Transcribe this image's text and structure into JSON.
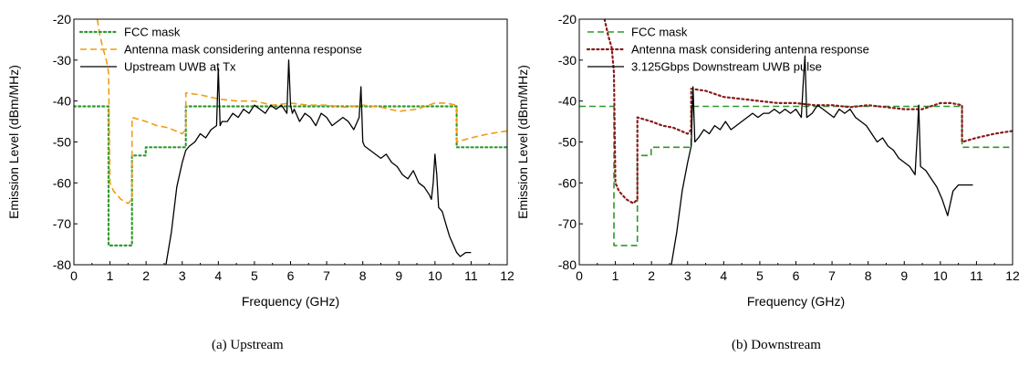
{
  "colors": {
    "fcc_green": "#2e9b2e",
    "fcc_green_dash": "#2a9a2a",
    "antenna_orange": "#f39c12",
    "antenna_maroon": "#8b1a1a",
    "signal": "#000000"
  },
  "chart_data": [
    {
      "type": "line",
      "caption": "(a)  Upstream",
      "xlabel": "Frequency (GHz)",
      "ylabel": "Emission Level (dBm/MHz)",
      "xlim": [
        0,
        12
      ],
      "ylim": [
        -80,
        -20
      ],
      "xticks": [
        "0",
        "1",
        "2",
        "3",
        "4",
        "5",
        "6",
        "7",
        "8",
        "9",
        "10",
        "11",
        "12"
      ],
      "yticks": [
        "-20",
        "-30",
        "-40",
        "-50",
        "-60",
        "-70",
        "-80"
      ],
      "legend_position": "top-left",
      "grid": false,
      "series": [
        {
          "name": "FCC mask",
          "style": "dotted",
          "color": "#2e9b2e",
          "x": [
            0,
            0.96,
            0.96,
            1.61,
            1.61,
            1.99,
            1.99,
            3.1,
            3.1,
            10.6,
            10.6,
            12
          ],
          "y": [
            -41.3,
            -41.3,
            -75.3,
            -75.3,
            -53.3,
            -53.3,
            -51.3,
            -51.3,
            -41.3,
            -41.3,
            -51.3,
            -51.3
          ]
        },
        {
          "name": "Antenna mask considering antenna response",
          "style": "dashed",
          "color": "#f39c12",
          "x": [
            0.65,
            0.72,
            0.8,
            0.9,
            0.96,
            1.0,
            1.1,
            1.3,
            1.5,
            1.61,
            1.61,
            1.8,
            2.0,
            2.3,
            2.6,
            3.0,
            3.1,
            3.1,
            3.5,
            4.0,
            4.5,
            5.0,
            5.5,
            6.0,
            6.5,
            7.0,
            7.5,
            8.0,
            8.5,
            9.0,
            9.5,
            10.0,
            10.3,
            10.6,
            10.6,
            11.0,
            11.5,
            12
          ],
          "y": [
            -20,
            -24,
            -27,
            -30,
            -33,
            -60,
            -62,
            -64,
            -65,
            -64,
            -44,
            -44.5,
            -45,
            -46,
            -46.5,
            -48,
            -47,
            -38,
            -38.5,
            -39.5,
            -40,
            -40,
            -41,
            -40.5,
            -41,
            -41,
            -41.5,
            -41,
            -41.5,
            -42.5,
            -42,
            -40.5,
            -40.5,
            -41,
            -50,
            -49,
            -48,
            -47.3
          ]
        },
        {
          "name": "Upstream UWB at Tx",
          "style": "solid",
          "color": "#000000",
          "x": [
            2.55,
            2.7,
            2.85,
            3.0,
            3.1,
            3.2,
            3.35,
            3.5,
            3.65,
            3.8,
            3.95,
            4.0,
            4.05,
            4.1,
            4.25,
            4.4,
            4.55,
            4.7,
            4.85,
            5.0,
            5.15,
            5.3,
            5.45,
            5.6,
            5.75,
            5.9,
            5.95,
            6.0,
            6.05,
            6.1,
            6.25,
            6.4,
            6.55,
            6.7,
            6.85,
            7.0,
            7.15,
            7.3,
            7.45,
            7.6,
            7.75,
            7.9,
            7.95,
            8.0,
            8.05,
            8.2,
            8.35,
            8.5,
            8.65,
            8.8,
            8.95,
            9.1,
            9.25,
            9.4,
            9.55,
            9.7,
            9.85,
            9.9,
            9.95,
            10.0,
            10.05,
            10.1,
            10.2,
            10.3,
            10.4,
            10.5,
            10.6,
            10.7,
            10.85,
            11.0
          ],
          "y": [
            -80,
            -72,
            -61,
            -55,
            -52,
            -51,
            -50,
            -48,
            -49,
            -47,
            -46,
            -32,
            -46,
            -45,
            -45,
            -43,
            -44,
            -42,
            -43,
            -41,
            -42,
            -43,
            -41,
            -42,
            -41,
            -43,
            -30,
            -41,
            -43,
            -42,
            -45,
            -43,
            -44,
            -46,
            -43,
            -44,
            -46,
            -45,
            -44,
            -45,
            -47,
            -44,
            -36.5,
            -50,
            -51,
            -52,
            -53,
            -54,
            -53,
            -55,
            -56,
            -58,
            -59,
            -57,
            -60,
            -61,
            -63,
            -64,
            -60,
            -53,
            -58,
            -66,
            -67,
            -70,
            -73,
            -75,
            -77,
            -78,
            -77,
            -77
          ]
        }
      ]
    },
    {
      "type": "line",
      "caption": "(b)  Downstream",
      "xlabel": "Frequency (GHz)",
      "ylabel": "Emission Level (dBm/MHz)",
      "xlim": [
        0,
        12
      ],
      "ylim": [
        -80,
        -20
      ],
      "xticks": [
        "0",
        "1",
        "2",
        "3",
        "4",
        "5",
        "6",
        "7",
        "8",
        "9",
        "10",
        "11",
        "12"
      ],
      "yticks": [
        "-20",
        "-30",
        "-40",
        "-50",
        "-60",
        "-70",
        "-80"
      ],
      "legend_position": "top-left",
      "grid": false,
      "series": [
        {
          "name": "FCC mask",
          "style": "dashed",
          "color": "#2a9a2a",
          "x": [
            0,
            0.96,
            0.96,
            1.61,
            1.61,
            1.99,
            1.99,
            3.1,
            3.1,
            10.6,
            10.6,
            12
          ],
          "y": [
            -41.3,
            -41.3,
            -75.3,
            -75.3,
            -53.3,
            -53.3,
            -51.3,
            -51.3,
            -41.3,
            -41.3,
            -51.3,
            -51.3
          ]
        },
        {
          "name": "Antenna mask considering antenna response",
          "style": "dotted",
          "color": "#8b1a1a",
          "x": [
            0.7,
            0.8,
            0.9,
            0.96,
            1.0,
            1.1,
            1.3,
            1.5,
            1.61,
            1.61,
            1.8,
            2.0,
            2.3,
            2.6,
            3.0,
            3.1,
            3.1,
            3.5,
            4.0,
            4.5,
            5.0,
            5.5,
            6.0,
            6.5,
            7.0,
            7.5,
            8.0,
            8.5,
            9.0,
            9.5,
            10.0,
            10.3,
            10.6,
            10.6,
            11.0,
            11.5,
            12
          ],
          "y": [
            -20,
            -24,
            -27,
            -33,
            -60,
            -62,
            -64,
            -65,
            -64,
            -44,
            -44.5,
            -45,
            -46,
            -46.5,
            -48,
            -47,
            -37,
            -37.5,
            -39,
            -39.5,
            -40,
            -40.5,
            -40.5,
            -41,
            -41,
            -41.5,
            -41,
            -41.5,
            -42,
            -42,
            -40.5,
            -40.5,
            -41,
            -50,
            -49,
            -48,
            -47.3
          ]
        },
        {
          "name": "3.125Gbps Downstream UWB pulse",
          "style": "solid",
          "color": "#000000",
          "x": [
            2.55,
            2.7,
            2.85,
            3.0,
            3.1,
            3.15,
            3.2,
            3.3,
            3.45,
            3.6,
            3.75,
            3.9,
            4.05,
            4.2,
            4.35,
            4.5,
            4.65,
            4.8,
            4.95,
            5.1,
            5.25,
            5.4,
            5.55,
            5.7,
            5.85,
            6.0,
            6.15,
            6.2,
            6.25,
            6.3,
            6.45,
            6.6,
            6.75,
            6.9,
            7.05,
            7.2,
            7.35,
            7.5,
            7.65,
            7.8,
            7.95,
            8.1,
            8.25,
            8.4,
            8.55,
            8.7,
            8.85,
            9.0,
            9.15,
            9.3,
            9.35,
            9.4,
            9.45,
            9.6,
            9.75,
            9.9,
            10.05,
            10.2,
            10.35,
            10.5,
            10.7,
            10.9
          ],
          "y": [
            -80,
            -72,
            -62,
            -55,
            -51,
            -36.5,
            -50,
            -49,
            -47,
            -48,
            -46,
            -47,
            -45,
            -47,
            -46,
            -45,
            -44,
            -43,
            -44,
            -43,
            -43,
            -42,
            -43,
            -42,
            -43,
            -42,
            -44,
            -36,
            -29,
            -44,
            -43,
            -41,
            -42,
            -43,
            -44,
            -42,
            -43,
            -42,
            -44,
            -45,
            -46,
            -48,
            -50,
            -49,
            -51,
            -52,
            -54,
            -55,
            -56,
            -58,
            -50,
            -41,
            -56,
            -57,
            -59,
            -61,
            -64,
            -68,
            -62,
            -60.5,
            -60.5,
            -60.5
          ]
        }
      ]
    }
  ]
}
